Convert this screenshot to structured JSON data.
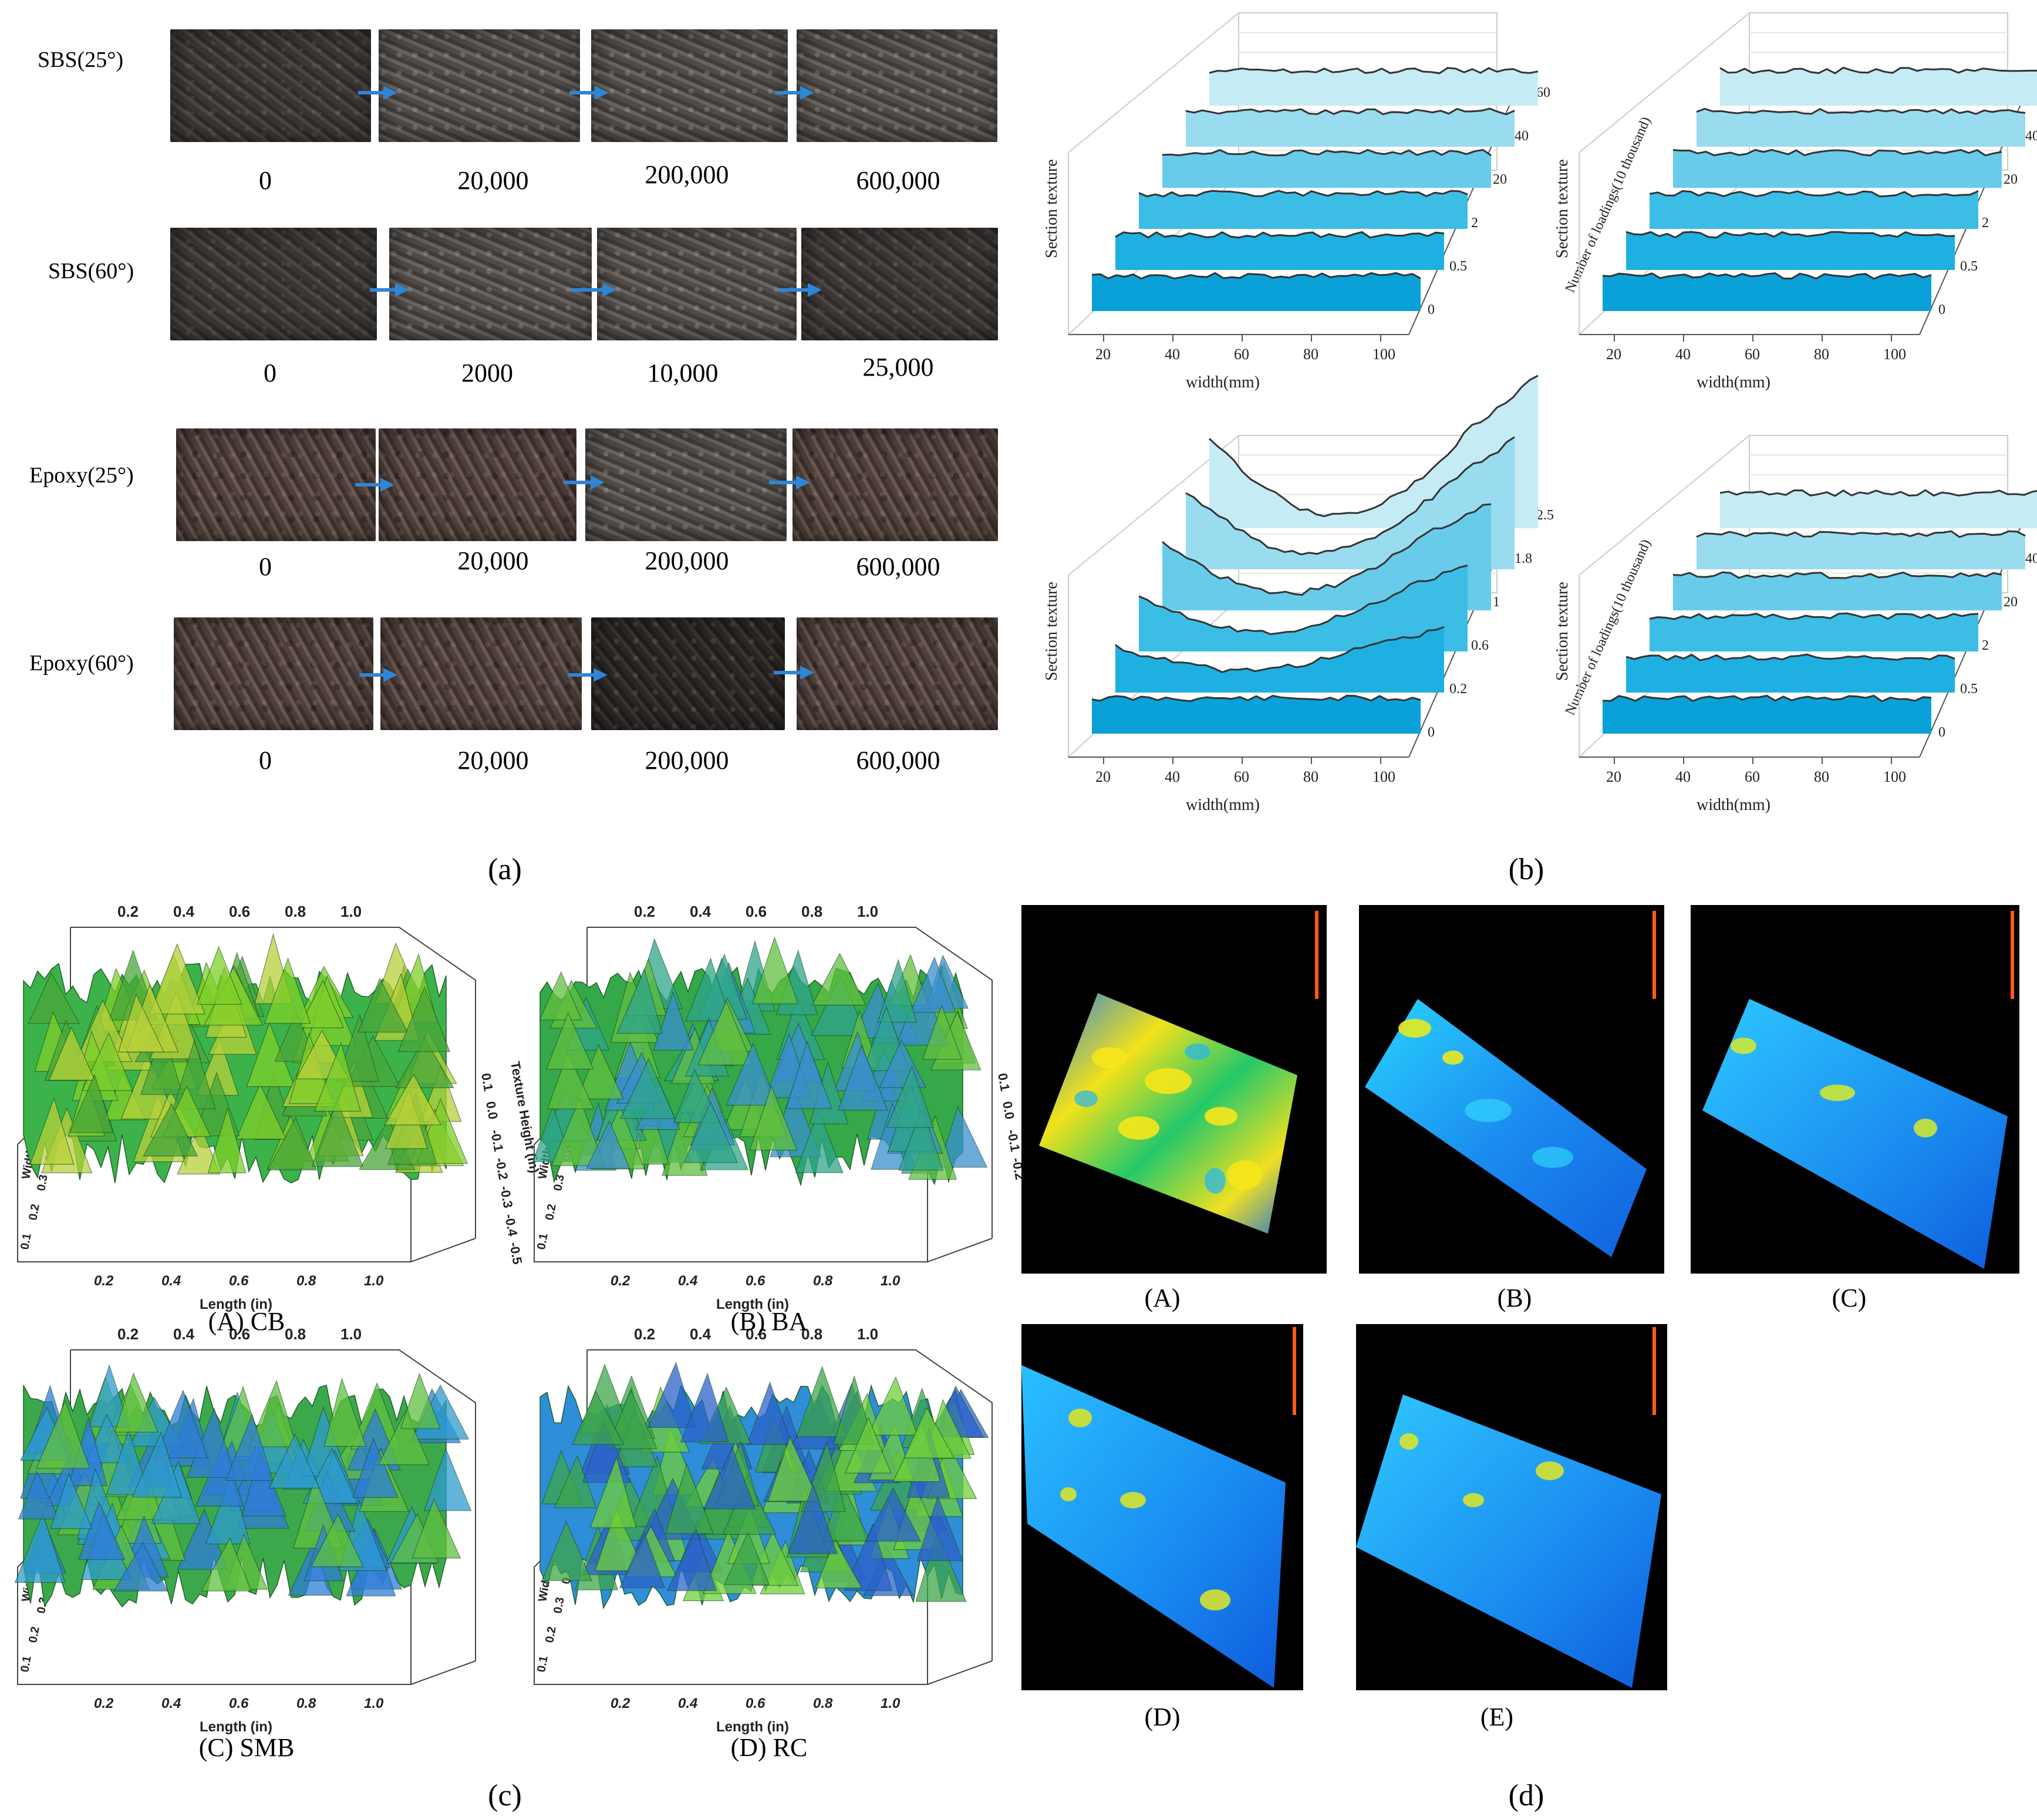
{
  "panel_a": {
    "letter": "(a)",
    "rows": [
      {
        "label": "SBS(25°)",
        "values": [
          "0",
          "20,000",
          "200,000",
          "600,000"
        ]
      },
      {
        "label": "SBS(60°)",
        "values": [
          "0",
          "2000",
          "10,000",
          "25,000"
        ]
      },
      {
        "label": "Epoxy(25°)",
        "values": [
          "0",
          "20,000",
          "200,000",
          "600,000"
        ]
      },
      {
        "label": "Epoxy(60°)",
        "values": [
          "0",
          "20,000",
          "200,000",
          "600,000"
        ]
      }
    ],
    "arrow_color": "#2e86d6"
  },
  "panel_b": {
    "letter": "(b)",
    "ylabel": "Section texture",
    "xlabel": "width(mm)",
    "zlabel": "Number of loadings(10 thousand)",
    "x_ticks": [
      "20",
      "40",
      "60",
      "80",
      "100"
    ],
    "z_ticks_default": [
      "0",
      "0.5",
      "2",
      "20",
      "40",
      "60"
    ],
    "z_ticks_alt": [
      "0",
      "0.2",
      "0.6",
      "1",
      "1.8",
      "2.5"
    ],
    "ribbon_colors": [
      "#0aa1d8",
      "#1eb0e0",
      "#3cbde5",
      "#68cbea",
      "#99dcef",
      "#c5ebf5"
    ]
  },
  "chart_data": [
    {
      "type": "area",
      "title": "",
      "xlabel": "width(mm)",
      "ylabel": "Section texture",
      "zlabel": "Number of loadings(10 thousand)",
      "z": [
        0,
        0.5,
        2,
        20,
        40,
        60
      ],
      "x_range": [
        5,
        100
      ],
      "series_profile": "nearly flat profiles"
    },
    {
      "type": "area",
      "title": "",
      "xlabel": "width(mm)",
      "ylabel": "Section texture",
      "zlabel": "Number of loadings(10 thousand)",
      "z": [
        0,
        0.5,
        2,
        20,
        40,
        60
      ],
      "x_range": [
        5,
        100
      ],
      "series_profile": "nearly flat profiles"
    },
    {
      "type": "area",
      "title": "",
      "xlabel": "width(mm)",
      "ylabel": "Section texture",
      "zlabel": "Number of loadings(10 thousand)",
      "z": [
        0,
        0.2,
        0.6,
        1,
        1.8,
        2.5
      ],
      "x_range": [
        5,
        100
      ],
      "series_profile": "increasing central rut depth"
    },
    {
      "type": "area",
      "title": "",
      "xlabel": "width(mm)",
      "ylabel": "Section texture",
      "zlabel": "Number of loadings(10 thousand)",
      "z": [
        0,
        0.5,
        2,
        20,
        40,
        60
      ],
      "x_range": [
        5,
        100
      ],
      "series_profile": "nearly flat profiles"
    }
  ],
  "panel_c": {
    "letter": "(c)",
    "x_ticks": [
      "0.2",
      "0.4",
      "0.6",
      "0.8",
      "1.0"
    ],
    "length_label": "Length (in)",
    "height_label": "Texture Height (in)",
    "width_label": "Width (in)",
    "items": [
      {
        "caption": "(A) CB",
        "height_ticks": [
          "0.1",
          "0.0",
          "-0.1",
          "-0.2",
          "-0.3",
          "-0.4",
          "-0.5"
        ]
      },
      {
        "caption": "(B) BA",
        "height_ticks": [
          "0.1",
          "0.0",
          "-0.1",
          "-0.2"
        ]
      },
      {
        "caption": "(C) SMB",
        "height_ticks": []
      },
      {
        "caption": "(D) RC",
        "height_ticks": []
      }
    ],
    "width_ticks": [
      "0.1",
      "0.2",
      "0.3",
      "0.4"
    ]
  },
  "panel_d": {
    "letter": "(d)",
    "captions": [
      "(A)",
      "(B)",
      "(C)",
      "(D)",
      "(E)"
    ]
  }
}
